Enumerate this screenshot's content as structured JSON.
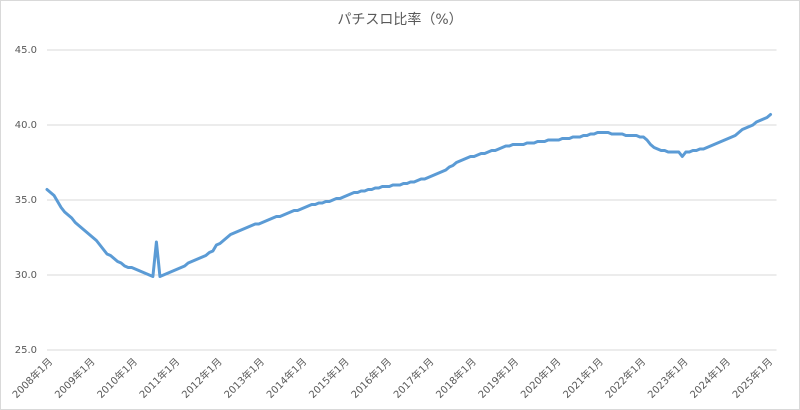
{
  "chart_data": {
    "type": "line",
    "title": "パチスロ比率（%）",
    "categories": [
      "2008年1月",
      null,
      null,
      null,
      null,
      null,
      null,
      null,
      null,
      null,
      null,
      null,
      "2009年1月",
      null,
      null,
      null,
      null,
      null,
      null,
      null,
      null,
      null,
      null,
      null,
      "2010年1月",
      null,
      null,
      null,
      null,
      null,
      null,
      null,
      null,
      null,
      null,
      null,
      "2011年1月",
      null,
      null,
      null,
      null,
      null,
      null,
      null,
      null,
      null,
      null,
      null,
      "2012年1月",
      null,
      null,
      null,
      null,
      null,
      null,
      null,
      null,
      null,
      null,
      null,
      "2013年1月",
      null,
      null,
      null,
      null,
      null,
      null,
      null,
      null,
      null,
      null,
      null,
      "2014年1月",
      null,
      null,
      null,
      null,
      null,
      null,
      null,
      null,
      null,
      null,
      null,
      "2015年1月",
      null,
      null,
      null,
      null,
      null,
      null,
      null,
      null,
      null,
      null,
      null,
      "2016年1月",
      null,
      null,
      null,
      null,
      null,
      null,
      null,
      null,
      null,
      null,
      null,
      "2017年1月",
      null,
      null,
      null,
      null,
      null,
      null,
      null,
      null,
      null,
      null,
      null,
      "2018年1月",
      null,
      null,
      null,
      null,
      null,
      null,
      null,
      null,
      null,
      null,
      null,
      "2019年1月",
      null,
      null,
      null,
      null,
      null,
      null,
      null,
      null,
      null,
      null,
      null,
      "2020年1月",
      null,
      null,
      null,
      null,
      null,
      null,
      null,
      null,
      null,
      null,
      null,
      "2021年1月",
      null,
      null,
      null,
      null,
      null,
      null,
      null,
      null,
      null,
      null,
      null,
      "2022年1月",
      null,
      null,
      null,
      null,
      null,
      null,
      null,
      null,
      null,
      null,
      null,
      "2023年1月",
      null,
      null,
      null,
      null,
      null,
      null,
      null,
      null,
      null,
      null,
      null,
      "2024年1月",
      null,
      null,
      null,
      null,
      null,
      null,
      null,
      null,
      null,
      null,
      null,
      "2025年1月",
      null
    ],
    "values": [
      35.7,
      35.5,
      35.3,
      34.9,
      34.5,
      34.2,
      34.0,
      33.8,
      33.5,
      33.3,
      33.1,
      32.9,
      32.7,
      32.5,
      32.3,
      32.0,
      31.7,
      31.4,
      31.3,
      31.1,
      30.9,
      30.8,
      30.6,
      30.5,
      30.5,
      30.4,
      30.3,
      30.2,
      30.1,
      30.0,
      29.9,
      32.2,
      29.9,
      30.0,
      30.1,
      30.2,
      30.3,
      30.4,
      30.5,
      30.6,
      30.8,
      30.9,
      31.0,
      31.1,
      31.2,
      31.3,
      31.5,
      31.6,
      32.0,
      32.1,
      32.3,
      32.5,
      32.7,
      32.8,
      32.9,
      33.0,
      33.1,
      33.2,
      33.3,
      33.4,
      33.4,
      33.5,
      33.6,
      33.7,
      33.8,
      33.9,
      33.9,
      34.0,
      34.1,
      34.2,
      34.3,
      34.3,
      34.4,
      34.5,
      34.6,
      34.7,
      34.7,
      34.8,
      34.8,
      34.9,
      34.9,
      35.0,
      35.1,
      35.1,
      35.2,
      35.3,
      35.4,
      35.5,
      35.5,
      35.6,
      35.6,
      35.7,
      35.7,
      35.8,
      35.8,
      35.9,
      35.9,
      35.9,
      36.0,
      36.0,
      36.0,
      36.1,
      36.1,
      36.2,
      36.2,
      36.3,
      36.4,
      36.4,
      36.5,
      36.6,
      36.7,
      36.8,
      36.9,
      37.0,
      37.2,
      37.3,
      37.5,
      37.6,
      37.7,
      37.8,
      37.9,
      37.9,
      38.0,
      38.1,
      38.1,
      38.2,
      38.3,
      38.3,
      38.4,
      38.5,
      38.6,
      38.6,
      38.7,
      38.7,
      38.7,
      38.7,
      38.8,
      38.8,
      38.8,
      38.9,
      38.9,
      38.9,
      39.0,
      39.0,
      39.0,
      39.0,
      39.1,
      39.1,
      39.1,
      39.2,
      39.2,
      39.2,
      39.3,
      39.3,
      39.4,
      39.4,
      39.5,
      39.5,
      39.5,
      39.5,
      39.4,
      39.4,
      39.4,
      39.4,
      39.3,
      39.3,
      39.3,
      39.3,
      39.2,
      39.2,
      39.0,
      38.7,
      38.5,
      38.4,
      38.3,
      38.3,
      38.2,
      38.2,
      38.2,
      38.2,
      37.9,
      38.2,
      38.2,
      38.3,
      38.3,
      38.4,
      38.4,
      38.5,
      38.6,
      38.7,
      38.8,
      38.9,
      39.0,
      39.1,
      39.2,
      39.3,
      39.5,
      39.7,
      39.8,
      39.9,
      40.0,
      40.2,
      40.3,
      40.4,
      40.5,
      40.7
    ],
    "color": "#5b9bd5",
    "ylim": [
      25,
      45
    ],
    "yticks": [
      {
        "value": 25,
        "label": "25.0"
      },
      {
        "value": 30,
        "label": "30.0"
      },
      {
        "value": 35,
        "label": "35.0"
      },
      {
        "value": 40,
        "label": "40.0"
      },
      {
        "value": 45,
        "label": "45.0"
      }
    ],
    "grid": true
  }
}
